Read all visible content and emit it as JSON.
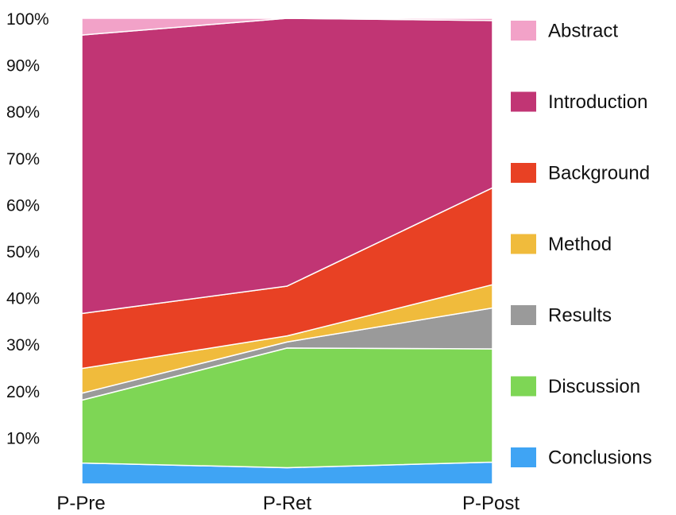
{
  "chart_data": {
    "type": "area",
    "stacking": "percent",
    "categories": [
      "P-Pre",
      "P-Ret",
      "P-Post"
    ],
    "yticks": [
      "10%",
      "20%",
      "30%",
      "40%",
      "50%",
      "60%",
      "70%",
      "80%",
      "90%",
      "100%"
    ],
    "ylim": [
      0,
      100
    ],
    "grid": false,
    "legend_position": "right",
    "series": [
      {
        "name": "Conclusions",
        "color": "#3FA4F4",
        "values": [
          4.5,
          3.5,
          4.7
        ]
      },
      {
        "name": "Discussion",
        "color": "#7ED655",
        "values": [
          13.5,
          25.7,
          24.3
        ]
      },
      {
        "name": "Results",
        "color": "#9A9A9A",
        "values": [
          1.5,
          1.3,
          8.8
        ]
      },
      {
        "name": "Method",
        "color": "#F0BB3C",
        "values": [
          5.3,
          1.3,
          5.0
        ]
      },
      {
        "name": "Background",
        "color": "#E84124",
        "values": [
          11.8,
          10.7,
          20.8
        ]
      },
      {
        "name": "Introduction",
        "color": "#C13574",
        "values": [
          59.8,
          57.5,
          35.9
        ]
      },
      {
        "name": "Abstract",
        "color": "#F2A2C8",
        "values": [
          3.6,
          0.0,
          0.5
        ]
      }
    ]
  }
}
